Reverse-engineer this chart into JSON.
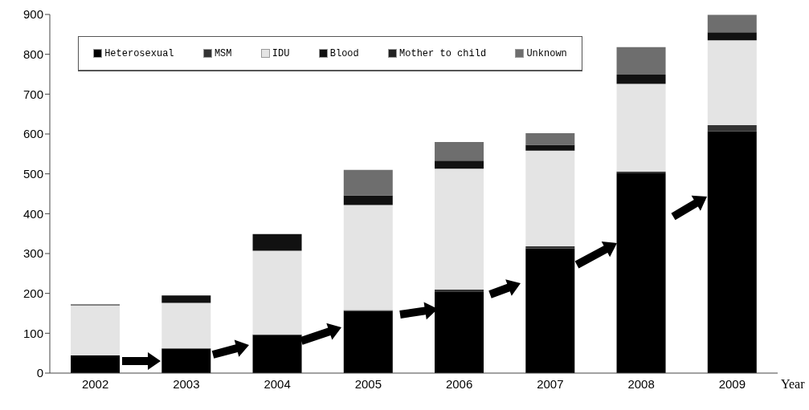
{
  "chart_data": {
    "type": "bar",
    "stacked": true,
    "xlabel": "Year",
    "categories": [
      "2002",
      "2003",
      "2004",
      "2005",
      "2006",
      "2007",
      "2008",
      "2009"
    ],
    "series": [
      {
        "name": "Heterosexual",
        "color": "#000000",
        "values": [
          45,
          62,
          95,
          156,
          205,
          313,
          503,
          607
        ]
      },
      {
        "name": "MSM",
        "color": "#333333",
        "values": [
          0,
          0,
          2,
          2,
          5,
          5,
          3,
          15
        ]
      },
      {
        "name": "IDU",
        "color": "#e4e4e4",
        "values": [
          125,
          114,
          210,
          264,
          303,
          240,
          220,
          213
        ]
      },
      {
        "name": "Blood",
        "color": "#111111",
        "values": [
          2,
          19,
          42,
          24,
          20,
          15,
          23,
          20
        ]
      },
      {
        "name": "Mother to child",
        "color": "#222222",
        "values": [
          0,
          0,
          0,
          0,
          0,
          0,
          0,
          0
        ]
      },
      {
        "name": "Unknown",
        "color": "#6e6e6e",
        "values": [
          0,
          0,
          0,
          64,
          47,
          29,
          69,
          44
        ]
      }
    ],
    "ylim": [
      0,
      900
    ],
    "yticks": [
      0,
      100,
      200,
      300,
      400,
      500,
      600,
      700,
      800,
      900
    ],
    "grid": false,
    "legend": "top"
  }
}
